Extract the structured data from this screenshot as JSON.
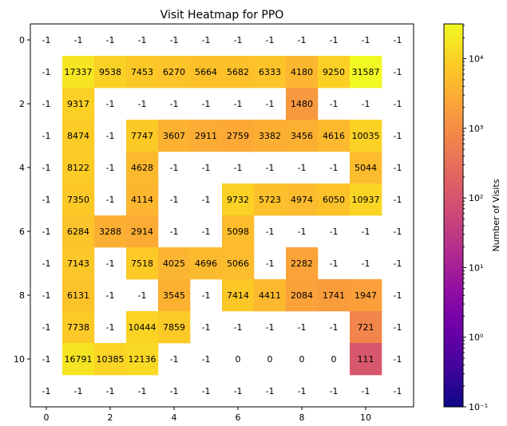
{
  "chart_data": {
    "type": "heatmap",
    "title": "Visit Heatmap for PPO",
    "xlabel": "",
    "ylabel": "",
    "x_ticks": [
      "0",
      "2",
      "4",
      "6",
      "8",
      "10"
    ],
    "y_ticks": [
      "0",
      "2",
      "4",
      "6",
      "8",
      "10"
    ],
    "colorbar": {
      "label": "Number of Visits",
      "scale": "log",
      "range": [
        0.1,
        31587
      ],
      "colormap": "plasma",
      "ticks": [
        {
          "value": 0.1,
          "label": "10⁻¹"
        },
        {
          "value": 1,
          "label": "10⁰"
        },
        {
          "value": 10,
          "label": "10¹"
        },
        {
          "value": 100,
          "label": "10²"
        },
        {
          "value": 1000,
          "label": "10³"
        },
        {
          "value": 10000,
          "label": "10⁴"
        }
      ]
    },
    "masked_value": -1,
    "grid": false,
    "values": [
      [
        -1,
        -1,
        -1,
        -1,
        -1,
        -1,
        -1,
        -1,
        -1,
        -1,
        -1,
        -1
      ],
      [
        -1,
        17337,
        9538,
        7453,
        6270,
        5664,
        5682,
        6333,
        4180,
        9250,
        31587,
        -1
      ],
      [
        -1,
        9317,
        -1,
        -1,
        -1,
        -1,
        -1,
        -1,
        1480,
        -1,
        -1,
        -1
      ],
      [
        -1,
        8474,
        -1,
        7747,
        3607,
        2911,
        2759,
        3382,
        3456,
        4616,
        10035,
        -1
      ],
      [
        -1,
        8122,
        -1,
        4628,
        -1,
        -1,
        -1,
        -1,
        -1,
        -1,
        5044,
        -1
      ],
      [
        -1,
        7350,
        -1,
        4114,
        -1,
        -1,
        9732,
        5723,
        4974,
        6050,
        10937,
        -1
      ],
      [
        -1,
        6284,
        3288,
        2914,
        -1,
        -1,
        5098,
        -1,
        -1,
        -1,
        -1,
        -1
      ],
      [
        -1,
        7143,
        -1,
        7518,
        4025,
        4696,
        5066,
        -1,
        2282,
        -1,
        -1,
        -1
      ],
      [
        -1,
        6131,
        -1,
        -1,
        3545,
        -1,
        7414,
        4411,
        2084,
        1741,
        1947,
        -1
      ],
      [
        -1,
        7738,
        -1,
        10444,
        7859,
        -1,
        -1,
        -1,
        -1,
        -1,
        721,
        -1
      ],
      [
        -1,
        16791,
        10385,
        12136,
        -1,
        -1,
        0,
        0,
        0,
        0,
        111,
        -1
      ],
      [
        -1,
        -1,
        -1,
        -1,
        -1,
        -1,
        -1,
        -1,
        -1,
        -1,
        -1,
        -1
      ]
    ]
  }
}
